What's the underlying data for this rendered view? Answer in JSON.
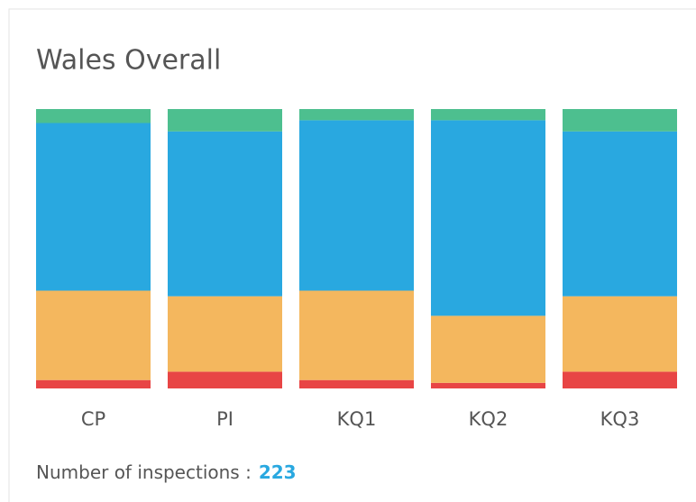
{
  "chart_data": {
    "type": "stacked_bar",
    "title": "Wales Overall",
    "categories": [
      "CP",
      "PI",
      "KQ1",
      "KQ2",
      "KQ3"
    ],
    "series": [
      {
        "color": "#e84545",
        "values": [
          3,
          6,
          3,
          2,
          6
        ]
      },
      {
        "color": "#f4b75e",
        "values": [
          32,
          27,
          32,
          24,
          27
        ]
      },
      {
        "color": "#29a8e0",
        "values": [
          60,
          59,
          61,
          70,
          59
        ]
      },
      {
        "color": "#4dbf8f",
        "values": [
          5,
          8,
          4,
          4,
          8
        ]
      }
    ],
    "ylim": [
      0,
      100
    ],
    "footer": {
      "label": "Number of inspections :",
      "value": 223
    }
  }
}
